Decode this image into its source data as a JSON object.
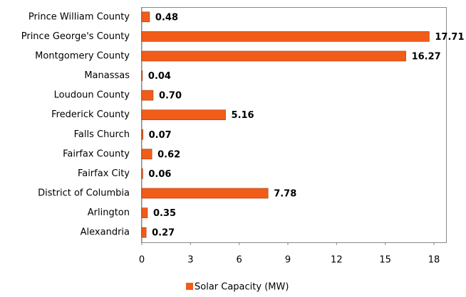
{
  "chart_data": {
    "type": "bar",
    "orientation": "horizontal",
    "categories": [
      "Prince William County",
      "Prince George's County",
      "Montgomery County",
      "Manassas",
      "Loudoun County",
      "Frederick County",
      "Falls Church",
      "Fairfax County",
      "Fairfax City",
      "District of Columbia",
      "Arlington",
      "Alexandria"
    ],
    "series": [
      {
        "name": "Solar Capacity (MW)",
        "color": "#f25c19",
        "values": [
          0.48,
          17.71,
          16.27,
          0.04,
          0.7,
          5.16,
          0.07,
          0.62,
          0.06,
          7.78,
          0.35,
          0.27
        ],
        "value_labels": [
          "0.48",
          "17.71",
          "16.27",
          "0.04",
          "0.70",
          "5.16",
          "0.07",
          "0.62",
          "0.06",
          "7.78",
          "0.35",
          "0.27"
        ]
      }
    ],
    "xlim": [
      0,
      18
    ],
    "xticks": [
      0,
      3,
      6,
      9,
      12,
      15,
      18
    ],
    "legend": "bottom"
  }
}
